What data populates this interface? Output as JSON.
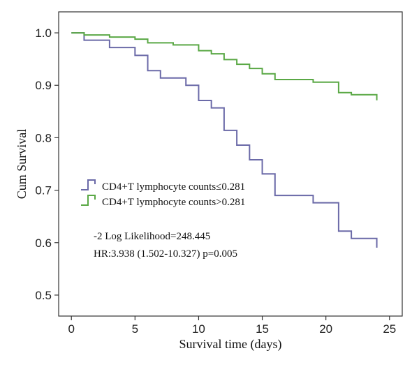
{
  "chart_data": {
    "type": "line",
    "step": true,
    "xlabel": "Survival time (days)",
    "ylabel": "Cum Survival",
    "xlim": [
      -1,
      26
    ],
    "ylim": [
      0.46,
      1.04
    ],
    "x_ticks": [
      0,
      5,
      10,
      15,
      20,
      25
    ],
    "y_ticks": [
      0.5,
      0.6,
      0.7,
      0.8,
      0.9,
      1.0
    ],
    "x_tick_labels": [
      "0",
      "5",
      "10",
      "15",
      "20",
      "25"
    ],
    "y_tick_labels": [
      "0.5",
      "0.6",
      "0.7",
      "0.8",
      "0.9",
      "1.0"
    ],
    "grid": false,
    "legend_position": "middle-left",
    "series": [
      {
        "name": "CD4+T lymphocyte counts≤0.281",
        "color": "#6b6aa8",
        "x": [
          0,
          1,
          3,
          5,
          6,
          7,
          9,
          10,
          11,
          12,
          13,
          14,
          15,
          16,
          19,
          21,
          22,
          24
        ],
        "y": [
          1.0,
          0.986,
          0.972,
          0.957,
          0.928,
          0.914,
          0.9,
          0.871,
          0.857,
          0.814,
          0.786,
          0.758,
          0.731,
          0.69,
          0.676,
          0.622,
          0.608,
          0.597
        ]
      },
      {
        "name": "CD4+T lymphocyte counts>0.281",
        "color": "#5aa845",
        "x": [
          0,
          1,
          3,
          5,
          6,
          8,
          10,
          11,
          12,
          13,
          14,
          15,
          16,
          19,
          21,
          22,
          24
        ],
        "y": [
          1.0,
          0.996,
          0.992,
          0.988,
          0.981,
          0.977,
          0.966,
          0.96,
          0.949,
          0.94,
          0.932,
          0.922,
          0.911,
          0.906,
          0.886,
          0.882,
          0.878
        ]
      }
    ],
    "annotations": [
      "-2 Log Likelihood=248.445",
      "HR:3.938 (1.502-10.327) p=0.005"
    ]
  }
}
